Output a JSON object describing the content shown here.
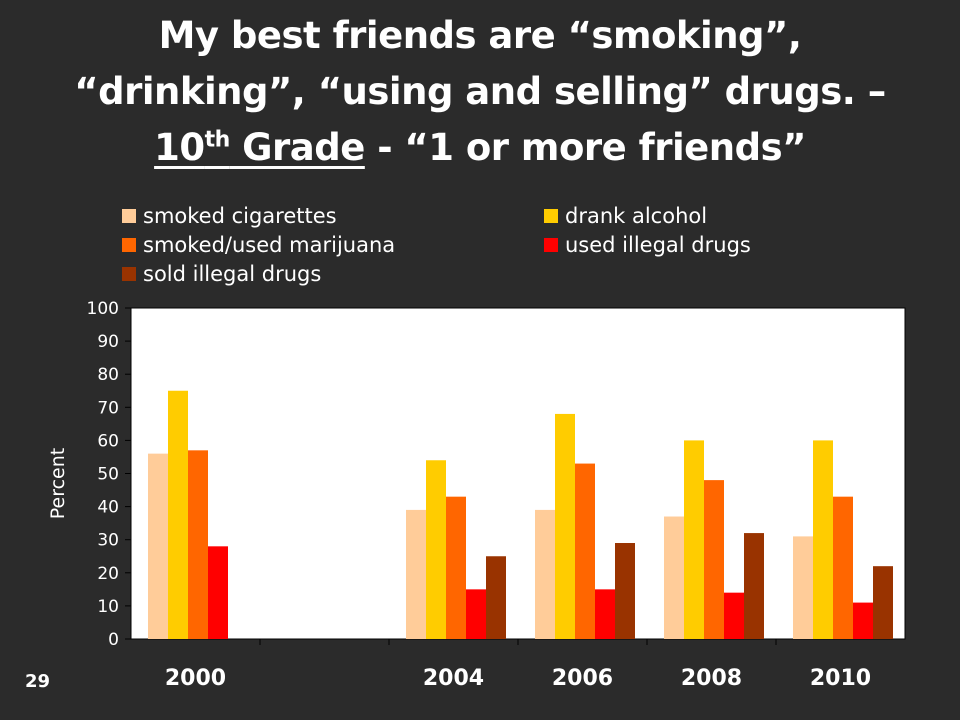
{
  "title": {
    "line1": "My best friends are “smoking”,",
    "line2": "“drinking”, “using and selling” drugs. –",
    "line3_num": "10",
    "line3_sup": "th",
    "line3_grade": " Grade",
    "line3_rest": " - “1 or more friends”"
  },
  "slide_number": "29",
  "colors": {
    "background": "#2b2b2b",
    "plot_background": "#ffffff",
    "smoked_cigarettes": "#ffcc99",
    "drank_alcohol": "#ffcc00",
    "smoked_used_marijuana": "#ff6600",
    "used_illegal_drugs": "#ff0000",
    "sold_illegal_drugs": "#993300"
  },
  "chart_data": {
    "type": "bar",
    "categories": [
      "2000",
      "",
      "2004",
      "2006",
      "2008",
      "2010"
    ],
    "ylabel": "Percent",
    "ylim": [
      0,
      100
    ],
    "yticks": [
      0,
      10,
      20,
      30,
      40,
      50,
      60,
      70,
      80,
      90,
      100
    ],
    "grid": false,
    "legend_position": "top",
    "series": [
      {
        "name": "smoked cigarettes",
        "color": "#ffcc99",
        "values": [
          56,
          null,
          39,
          39,
          37,
          31
        ]
      },
      {
        "name": "drank alcohol",
        "color": "#ffcc00",
        "values": [
          75,
          null,
          54,
          68,
          60,
          60
        ]
      },
      {
        "name": "smoked/used marijuana",
        "color": "#ff6600",
        "values": [
          57,
          null,
          43,
          53,
          48,
          43
        ]
      },
      {
        "name": "used illegal drugs",
        "color": "#ff0000",
        "values": [
          28,
          null,
          15,
          15,
          14,
          11
        ]
      },
      {
        "name": "sold illegal drugs",
        "color": "#993300",
        "values": [
          null,
          null,
          25,
          29,
          32,
          22
        ]
      }
    ]
  }
}
